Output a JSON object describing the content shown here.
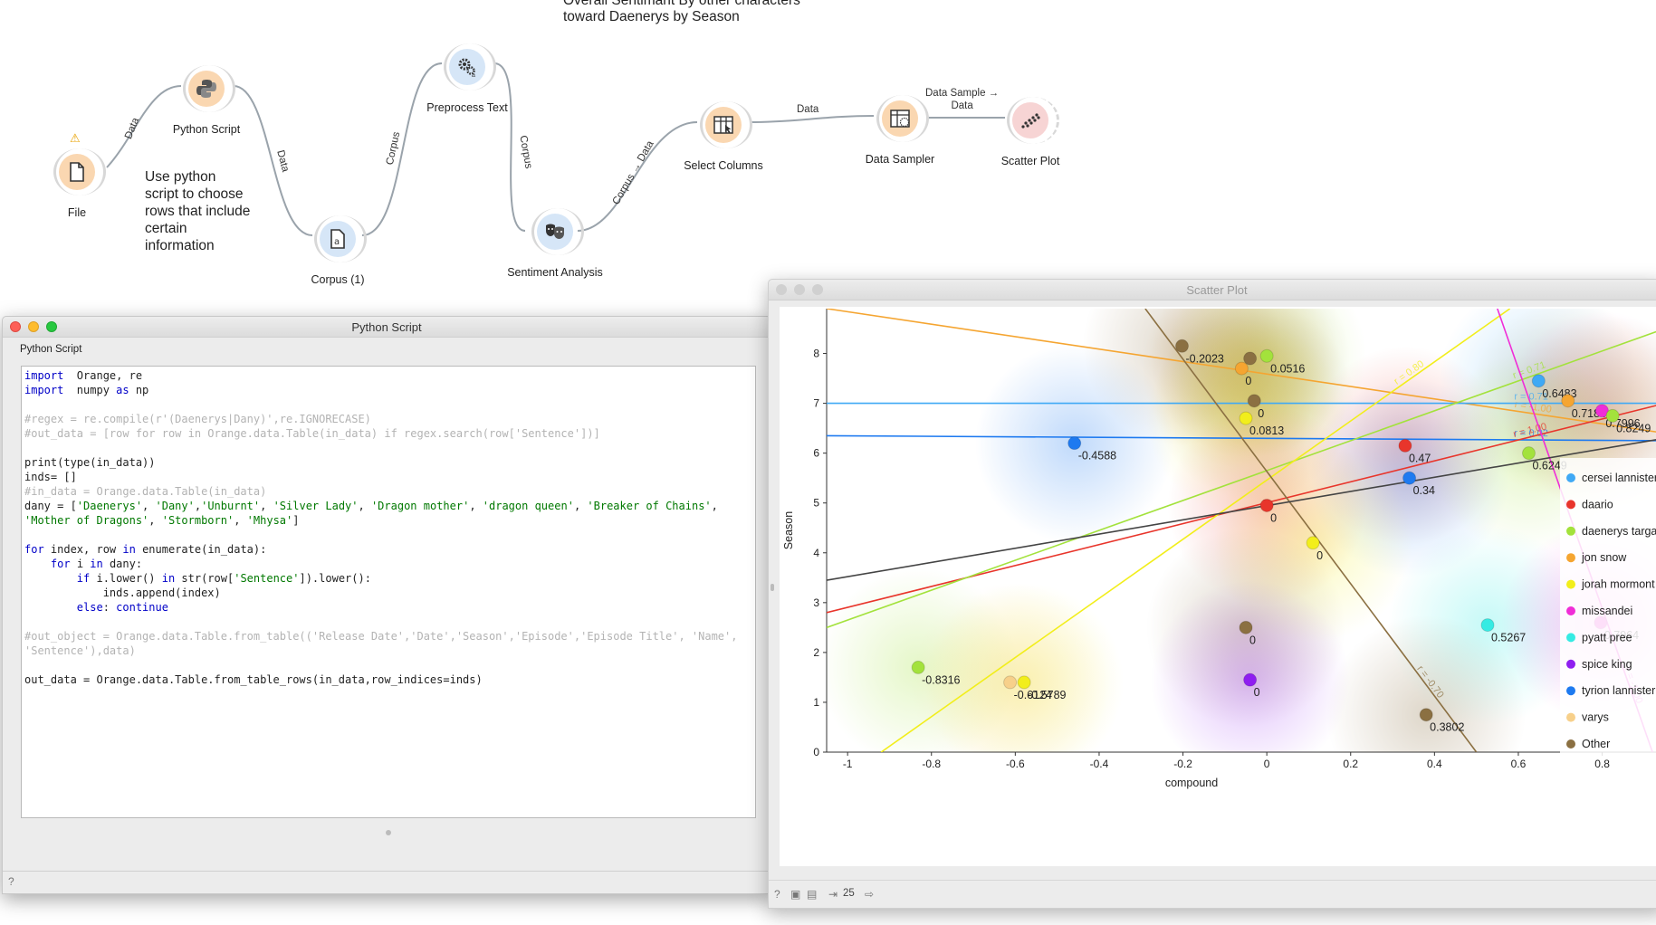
{
  "canvas": {
    "annotation_title": "Overall Sentimant By other characters\ntoward Daenerys by Season",
    "note_text": "Use python\nscript to choose\nrows that include\ncertain\ninformation",
    "warning_symbol": "⚠",
    "widgets": [
      {
        "name": "File",
        "icon": "file-icon",
        "color": "orange"
      },
      {
        "name": "Python Script",
        "icon": "python-icon",
        "color": "orange"
      },
      {
        "name": "Corpus (1)",
        "icon": "corpus-icon",
        "color": "blue"
      },
      {
        "name": "Preprocess Text",
        "icon": "gears-icon",
        "color": "blue"
      },
      {
        "name": "Sentiment Analysis",
        "icon": "theater-masks-icon",
        "color": "blue"
      },
      {
        "name": "Select Columns",
        "icon": "select-columns-icon",
        "color": "orange"
      },
      {
        "name": "Data Sampler",
        "icon": "data-sampler-icon",
        "color": "orange"
      },
      {
        "name": "Scatter Plot",
        "icon": "scatter-plot-icon",
        "color": "red"
      }
    ],
    "links": [
      "Data",
      "Data",
      "Corpus",
      "Corpus",
      "Corpus → Data",
      "Data",
      "Data Sample →\nData"
    ]
  },
  "python_window": {
    "title": "Python Script",
    "subtitle": "Python Script",
    "code_lines": [
      [
        [
          "kw",
          "import"
        ],
        [
          "",
          "  Orange, re"
        ]
      ],
      [
        [
          "kw",
          "import"
        ],
        [
          "",
          "  numpy "
        ],
        [
          "kw",
          "as"
        ],
        [
          "",
          "",
          " np"
        ]
      ],
      [],
      [
        [
          "cm",
          "#regex = re.compile(r'(Daenerys|Dany)',re.IGNORECASE)"
        ]
      ],
      [
        [
          "cm",
          "#out_data = [row for row in Orange.data.Table(in_data) if regex.search(row['Sentence'])]"
        ]
      ],
      [],
      [
        [
          "",
          "print(type(in_data))"
        ]
      ],
      [
        [
          "",
          "inds= []"
        ]
      ],
      [
        [
          "cm",
          "#in_data = Orange.data.Table(in_data)"
        ]
      ],
      [
        [
          "",
          "dany = ["
        ],
        [
          "str",
          "'Daenerys'"
        ],
        [
          "",
          ", "
        ],
        [
          "str",
          "'Dany'"
        ],
        [
          "",
          ","
        ],
        [
          "str",
          "'Unburnt'"
        ],
        [
          "",
          ", "
        ],
        [
          "str",
          "'Silver Lady'"
        ],
        [
          "",
          ", "
        ],
        [
          "str",
          "'Dragon mother'"
        ],
        [
          "",
          ", "
        ],
        [
          "str",
          "'dragon queen'"
        ],
        [
          "",
          ", "
        ],
        [
          "str",
          "'Breaker of Chains'"
        ],
        [
          "",
          ","
        ]
      ],
      [
        [
          "str",
          "'Mother of Dragons'"
        ],
        [
          "",
          ", "
        ],
        [
          "str",
          "'Stormborn'"
        ],
        [
          "",
          ", "
        ],
        [
          "str",
          "'Mhysa'"
        ],
        [
          "",
          "]"
        ]
      ],
      [],
      [
        [
          "kw",
          "for"
        ],
        [
          "",
          " index, row "
        ],
        [
          "kw",
          "in"
        ],
        [
          "",
          " enumerate(in_data):"
        ]
      ],
      [
        [
          "",
          "    "
        ],
        [
          "kw",
          "for"
        ],
        [
          "",
          " i "
        ],
        [
          "kw",
          "in"
        ],
        [
          "",
          " dany:"
        ]
      ],
      [
        [
          "",
          "        "
        ],
        [
          "kw",
          "if"
        ],
        [
          "",
          " i.lower() "
        ],
        [
          "kw",
          "in"
        ],
        [
          "",
          " str(row["
        ],
        [
          "str",
          "'Sentence'"
        ],
        [
          "",
          "]).lower():"
        ]
      ],
      [
        [
          "",
          "            inds.append(index)"
        ]
      ],
      [
        [
          "",
          "        "
        ],
        [
          "kw",
          "else"
        ],
        [
          "",
          ": "
        ],
        [
          "kw",
          "continue"
        ]
      ],
      [],
      [
        [
          "cm",
          "#out_object = Orange.data.Table.from_table(('Release Date','Date','Season','Episode','Episode Title', 'Name',"
        ]
      ],
      [
        [
          "cm",
          "'Sentence'),data)"
        ]
      ],
      [],
      [
        [
          "",
          "out_data = Orange.data.Table.from_table_rows(in_data,row_indices=inds)"
        ]
      ]
    ]
  },
  "scatter_window": {
    "title": "Scatter Plot",
    "status_count": "25"
  },
  "chart_data": {
    "type": "scatter",
    "xlabel": "compound",
    "ylabel": "Season",
    "xlim": [
      -1.05,
      0.95
    ],
    "ylim": [
      0,
      8.9
    ],
    "xticks": [
      "-1",
      "-0.8",
      "-0.6",
      "-0.4",
      "-0.2",
      "0",
      "0.2",
      "0.4",
      "0.6",
      "0.8"
    ],
    "xtick_values": [
      -1,
      -0.8,
      -0.6,
      -0.4,
      -0.2,
      0,
      0.2,
      0.4,
      0.6,
      0.8
    ],
    "yticks": [
      "0",
      "1",
      "2",
      "3",
      "4",
      "5",
      "6",
      "7",
      "8"
    ],
    "ytick_values": [
      0,
      1,
      2,
      3,
      4,
      5,
      6,
      7,
      8
    ],
    "legend_position": "right",
    "series": [
      {
        "name": "cersei lannister",
        "color": "#3fa9f5"
      },
      {
        "name": "daario",
        "color": "#e8352b"
      },
      {
        "name": "daenerys targaryen",
        "color": "#a3e23c"
      },
      {
        "name": "jon snow",
        "color": "#f5a531"
      },
      {
        "name": "jorah mormont",
        "color": "#f2ee1b"
      },
      {
        "name": "missandei",
        "color": "#f02dd7"
      },
      {
        "name": "pyatt pree",
        "color": "#35ebe3"
      },
      {
        "name": "spice king",
        "color": "#8f1ef0"
      },
      {
        "name": "tyrion lannister",
        "color": "#1e7af0"
      },
      {
        "name": "varys",
        "color": "#f7d08a"
      },
      {
        "name": "Other",
        "color": "#8b7042"
      }
    ],
    "points": [
      {
        "x": -0.2023,
        "y": 8.15,
        "series": "Other",
        "label": "-0.2023"
      },
      {
        "x": -0.04,
        "y": 7.9,
        "series": "Other",
        "label": ""
      },
      {
        "x": 0.0,
        "y": 7.95,
        "series": "daenerys targaryen",
        "label": "0.0516"
      },
      {
        "x": -0.06,
        "y": 7.7,
        "series": "jon snow",
        "label": "0"
      },
      {
        "x": -0.03,
        "y": 7.05,
        "series": "Other",
        "label": "0"
      },
      {
        "x": -0.05,
        "y": 6.7,
        "series": "jorah mormont",
        "label": "0.0813"
      },
      {
        "x": -0.4588,
        "y": 6.2,
        "series": "tyrion lannister",
        "label": "-0.4588"
      },
      {
        "x": 0.33,
        "y": 6.15,
        "series": "daario",
        "label": "0.47"
      },
      {
        "x": 0.34,
        "y": 5.5,
        "series": "tyrion lannister",
        "label": "0.34"
      },
      {
        "x": 0.0,
        "y": 4.95,
        "series": "daario",
        "label": "0"
      },
      {
        "x": 0.11,
        "y": 4.2,
        "series": "jorah mormont",
        "label": "0"
      },
      {
        "x": 0.6483,
        "y": 7.45,
        "series": "cersei lannister",
        "label": "0.6483"
      },
      {
        "x": 0.7184,
        "y": 7.05,
        "series": "jon snow",
        "label": "0.7184"
      },
      {
        "x": 0.7996,
        "y": 6.85,
        "series": "missandei",
        "label": "0.7996"
      },
      {
        "x": 0.8249,
        "y": 6.75,
        "series": "daenerys targaryen",
        "label": "0.8249"
      },
      {
        "x": 0.6249,
        "y": 6.0,
        "series": "daenerys targaryen",
        "label": "0.6249"
      },
      {
        "x": 0.5267,
        "y": 2.55,
        "series": "pyatt pree",
        "label": "0.5267"
      },
      {
        "x": 0.7964,
        "y": 2.6,
        "series": "missandei",
        "label": "0.7964"
      },
      {
        "x": -0.05,
        "y": 2.5,
        "series": "Other",
        "label": "0"
      },
      {
        "x": -0.8316,
        "y": 1.7,
        "series": "daenerys targaryen",
        "label": "-0.8316"
      },
      {
        "x": -0.5789,
        "y": 1.4,
        "series": "jorah mormont",
        "label": "-0.5789"
      },
      {
        "x": -0.6124,
        "y": 1.4,
        "series": "varys",
        "label": "-0.6124"
      },
      {
        "x": -0.04,
        "y": 1.45,
        "series": "spice king",
        "label": "0"
      },
      {
        "x": 0.3802,
        "y": 0.75,
        "series": "Other",
        "label": "0.3802"
      }
    ],
    "regression_lines": [
      {
        "series": "jon snow",
        "label": "r = -1.00"
      },
      {
        "series": "cersei lannister",
        "label": "r = 0.71"
      },
      {
        "series": "tyrion lannister",
        "label": "r = 0.02"
      },
      {
        "series": "daario",
        "label": "r = 1.00"
      },
      {
        "series": "daenerys targaryen",
        "label": "r = 0.71"
      },
      {
        "series": "jorah mormont",
        "label": "r = 0.80"
      },
      {
        "series": "missandei",
        "label": "r = -1.00"
      },
      {
        "series": "Other",
        "label": "r = -0.70"
      },
      {
        "series": "Other",
        "label": ""
      }
    ]
  }
}
